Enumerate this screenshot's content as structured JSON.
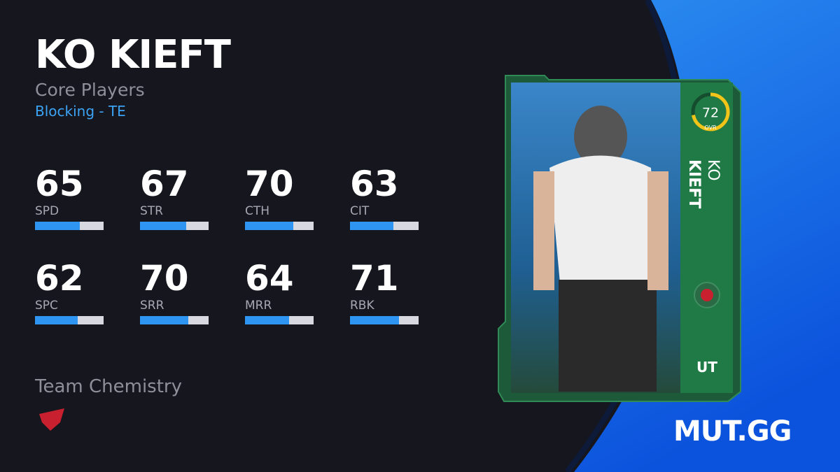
{
  "header": {
    "name": "KO KIEFT",
    "program": "Core Players",
    "archetype": "Blocking - TE"
  },
  "stats": [
    {
      "value": 65,
      "label": "SPD"
    },
    {
      "value": 67,
      "label": "STR"
    },
    {
      "value": 70,
      "label": "CTH"
    },
    {
      "value": 63,
      "label": "CIT"
    },
    {
      "value": 62,
      "label": "SPC"
    },
    {
      "value": 70,
      "label": "SRR"
    },
    {
      "value": 64,
      "label": "MRR"
    },
    {
      "value": 71,
      "label": "RBK"
    }
  ],
  "team_chemistry": {
    "label": "Team Chemistry"
  },
  "card": {
    "ovr": 72,
    "ovr_label": "OVR",
    "first_name": "KO",
    "last_name": "KIEFT",
    "tag": "UT"
  },
  "brand": "MUT.GG"
}
